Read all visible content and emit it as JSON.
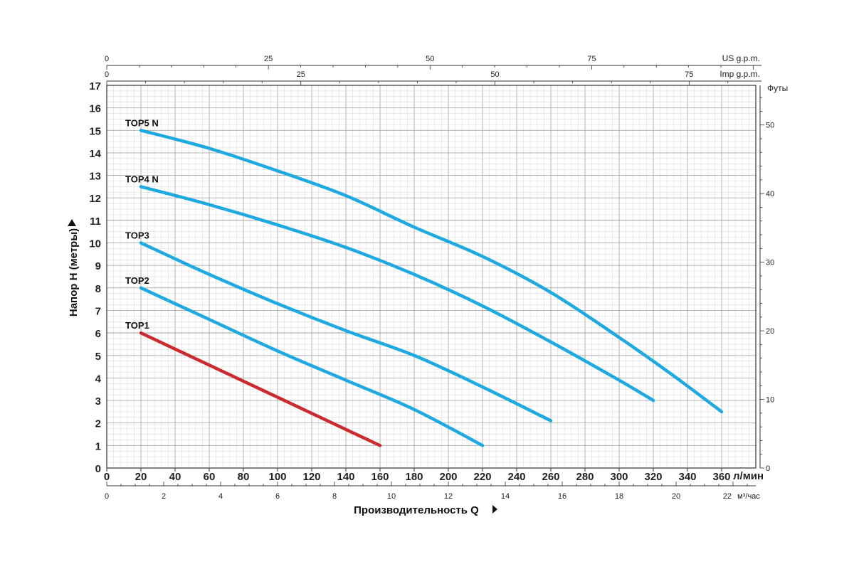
{
  "chart_data": {
    "type": "line",
    "ylabel": "Напор H (метры)",
    "xlabel": "Производительность Q",
    "x_unit": "л/мин",
    "x2_unit": "м³/час",
    "us_unit": "US g.p.m.",
    "imp_unit": "Imp g.p.m.",
    "y2_unit": "Футы",
    "xlim": [
      0,
      380
    ],
    "ylim": [
      0,
      17
    ],
    "x_ticks": [
      0,
      20,
      40,
      60,
      80,
      100,
      120,
      140,
      160,
      180,
      200,
      220,
      240,
      260,
      280,
      300,
      320,
      340,
      360
    ],
    "y_ticks": [
      0,
      1,
      2,
      3,
      4,
      5,
      6,
      7,
      8,
      9,
      10,
      11,
      12,
      13,
      14,
      15,
      16,
      17
    ],
    "m3h_ticks": [
      0,
      2,
      4,
      6,
      8,
      10,
      12,
      14,
      16,
      18,
      20,
      22
    ],
    "us_ticks": [
      0,
      25,
      50,
      75
    ],
    "imp_ticks": [
      0,
      25,
      50,
      75
    ],
    "ft_ticks": [
      0,
      10,
      20,
      30,
      40,
      50
    ],
    "grid": true,
    "series": [
      {
        "name": "TOP1",
        "color": "#cc2a2f",
        "x": [
          20,
          160
        ],
        "y": [
          6,
          1
        ]
      },
      {
        "name": "TOP2",
        "color": "#1ea9e1",
        "x": [
          20,
          60,
          100,
          140,
          180,
          220
        ],
        "y": [
          8,
          6.6,
          5.2,
          3.9,
          2.6,
          1
        ]
      },
      {
        "name": "TOP3",
        "color": "#1ea9e1",
        "x": [
          20,
          60,
          100,
          140,
          180,
          220,
          260
        ],
        "y": [
          10,
          8.6,
          7.3,
          6.1,
          5,
          3.6,
          2.1
        ]
      },
      {
        "name": "TOP4 N",
        "color": "#1ea9e1",
        "x": [
          20,
          60,
          100,
          140,
          180,
          220,
          260,
          300,
          320
        ],
        "y": [
          12.5,
          11.7,
          10.8,
          9.8,
          8.6,
          7.2,
          5.6,
          3.9,
          3
        ]
      },
      {
        "name": "TOP5 N",
        "color": "#1ea9e1",
        "x": [
          20,
          60,
          100,
          140,
          180,
          220,
          260,
          300,
          330,
          360
        ],
        "y": [
          15,
          14.2,
          13.2,
          12.1,
          10.7,
          9.4,
          7.8,
          5.8,
          4.2,
          2.5
        ]
      }
    ]
  }
}
